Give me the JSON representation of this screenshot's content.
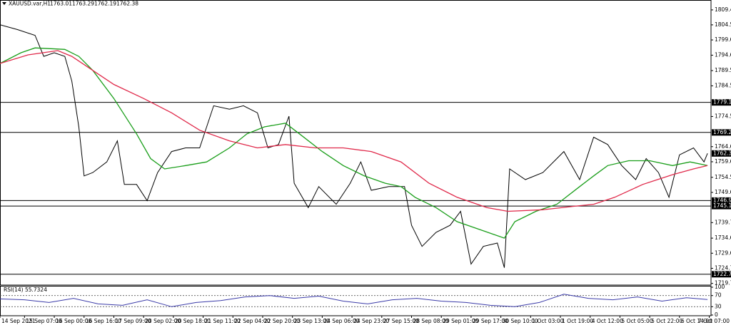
{
  "chart_data": [
    {
      "type": "line",
      "title": "XAUUSD.var,H1",
      "ohlc": [
        1763.01,
        1763.29,
        1762.19,
        1762.38
      ],
      "xlim": [
        0,
        406
      ],
      "ylim": [
        1719.2,
        1812.7
      ],
      "yticks": [
        1809.45,
        1804.55,
        {
          "value": 1799.6,
          "label": "1799.60"
        },
        {
          "value": 1794.6,
          "label": "1794.60"
        },
        1789.55,
        1784.55,
        {
          "value": 1774.5,
          "label": "1774.50"
        },
        {
          "value": 1764.6,
          "label": "1764.60"
        },
        1759.65,
        1754.55,
        {
          "value": 1749.6,
          "label": "1749.60"
        },
        {
          "value": 1739.7,
          "label": "1739.70"
        },
        {
          "value": 1734.6,
          "label": "1734.60"
        },
        1729.65,
        {
          "value": 1724.7,
          "label": "1724.70"
        },
        1719.75
      ],
      "levels": [
        1779.12,
        1769.27,
        1746.93,
        1745.12,
        1722.76
      ],
      "last_price": 1762.38,
      "series": [
        {
          "color": "#000000",
          "x": [
            0,
            10,
            20,
            25,
            31,
            37,
            41,
            45,
            48,
            53,
            61,
            67,
            71,
            78,
            84,
            90,
            98,
            106,
            114,
            122,
            131,
            139,
            147,
            153,
            159,
            165,
            168,
            176,
            182,
            192,
            200,
            206,
            212,
            222,
            231,
            235,
            241,
            249,
            257,
            263,
            269,
            276,
            284,
            288,
            291,
            300,
            310,
            322,
            331,
            339,
            347,
            355,
            363,
            369,
            376,
            382,
            388,
            396,
            402,
            404
          ],
          "values": [
            1804.6,
            1803.0,
            1801.1,
            1794.2,
            1795.4,
            1794.2,
            1786.1,
            1771.1,
            1755.0,
            1756.1,
            1759.6,
            1766.5,
            1752.2,
            1752.2,
            1746.9,
            1756.1,
            1763.0,
            1764.2,
            1764.2,
            1778.0,
            1776.9,
            1778.0,
            1775.7,
            1764.2,
            1765.3,
            1774.6,
            1752.6,
            1744.6,
            1751.5,
            1745.7,
            1752.6,
            1759.6,
            1750.3,
            1751.5,
            1751.5,
            1738.8,
            1731.9,
            1736.5,
            1738.8,
            1743.4,
            1726.1,
            1731.9,
            1733.0,
            1724.9,
            1757.3,
            1753.8,
            1756.1,
            1763.0,
            1753.8,
            1767.7,
            1765.3,
            1758.4,
            1753.8,
            1760.7,
            1756.1,
            1748.0,
            1761.9,
            1764.2,
            1759.6,
            1762.4
          ]
        },
        {
          "color": "#1a9e1a",
          "x": [
            0,
            12,
            20,
            37,
            45,
            53,
            65,
            78,
            86,
            94,
            106,
            118,
            131,
            141,
            151,
            163,
            171,
            184,
            196,
            208,
            220,
            229,
            237,
            249,
            261,
            273,
            288,
            294,
            306,
            318,
            331,
            339,
            347,
            359,
            371,
            384,
            394,
            404
          ],
          "values": [
            1791.9,
            1795.4,
            1797.0,
            1796.5,
            1794.2,
            1789.6,
            1780.4,
            1768.8,
            1760.7,
            1757.3,
            1758.4,
            1759.6,
            1764.2,
            1768.8,
            1771.1,
            1772.3,
            1768.8,
            1763.0,
            1758.4,
            1755.0,
            1752.6,
            1751.5,
            1748.0,
            1744.6,
            1740.0,
            1737.6,
            1734.6,
            1740.0,
            1743.4,
            1745.7,
            1751.5,
            1755.0,
            1758.4,
            1760.0,
            1760.0,
            1758.4,
            1759.6,
            1758.4
          ]
        },
        {
          "color": "#e0294a",
          "x": [
            0,
            16,
            33,
            41,
            53,
            65,
            82,
            98,
            114,
            131,
            147,
            163,
            180,
            196,
            212,
            229,
            245,
            261,
            278,
            290,
            310,
            327,
            339,
            351,
            367,
            384,
            396,
            404
          ],
          "values": [
            1791.9,
            1794.7,
            1796.1,
            1794.2,
            1789.6,
            1785.0,
            1780.4,
            1775.7,
            1770.0,
            1766.5,
            1764.2,
            1765.3,
            1764.2,
            1764.2,
            1763.0,
            1759.6,
            1752.6,
            1748.0,
            1744.6,
            1743.4,
            1743.9,
            1745.0,
            1745.7,
            1748.0,
            1752.2,
            1755.4,
            1757.3,
            1758.4
          ]
        }
      ]
    },
    {
      "type": "line",
      "title": "RSI(14) 55.7324",
      "xlim": [
        0,
        406
      ],
      "ylim": [
        0,
        100
      ],
      "yticks": [
        100,
        70,
        30,
        0
      ],
      "levels": [
        70,
        30
      ],
      "xticks": [
        {
          "value": 0,
          "label": "14 Sep 2021"
        },
        {
          "value": 14,
          "label": "15 Sep 07:00"
        },
        {
          "value": 31,
          "label": "16 Sep 00:00"
        },
        {
          "value": 48,
          "label": "16 Sep 16:00"
        },
        {
          "value": 65,
          "label": "17 Sep 09:00"
        },
        {
          "value": 82,
          "label": "20 Sep 02:00"
        },
        {
          "value": 99,
          "label": "20 Sep 18:00"
        },
        {
          "value": 116,
          "label": "21 Sep 11:00"
        },
        {
          "value": 133,
          "label": "22 Sep 04:00"
        },
        {
          "value": 150,
          "label": "22 Sep 20:00"
        },
        {
          "value": 167,
          "label": "23 Sep 13:00"
        },
        {
          "value": 184,
          "label": "24 Sep 06:00"
        },
        {
          "value": 201,
          "label": "24 Sep 23:00"
        },
        {
          "value": 218,
          "label": "27 Sep 15:00"
        },
        {
          "value": 235,
          "label": "28 Sep 08:00"
        },
        {
          "value": 252,
          "label": "29 Sep 01:00"
        },
        {
          "value": 269,
          "label": "29 Sep 17:00"
        },
        {
          "value": 286,
          "label": "30 Sep 10:00"
        },
        {
          "value": 303,
          "label": "1 Oct 03:00"
        },
        {
          "value": 320,
          "label": "1 Oct 19:00"
        },
        {
          "value": 337,
          "label": "4 Oct 12:00"
        },
        {
          "value": 354,
          "label": "5 Oct 05:00"
        },
        {
          "value": 371,
          "label": "5 Oct 22:00"
        },
        {
          "value": 388,
          "label": "6 Oct 14:00"
        },
        {
          "value": 405,
          "label": "7 Oct 07:00"
        }
      ],
      "series": [
        {
          "color": "#3a3aa8",
          "x": [
            0,
            14,
            28,
            42,
            56,
            70,
            84,
            98,
            112,
            126,
            140,
            154,
            168,
            182,
            196,
            210,
            224,
            238,
            252,
            266,
            280,
            294,
            308,
            322,
            336,
            350,
            364,
            378,
            392,
            404
          ],
          "values": [
            58,
            55,
            45,
            60,
            40,
            35,
            55,
            30,
            45,
            52,
            65,
            70,
            60,
            68,
            50,
            40,
            55,
            60,
            50,
            45,
            35,
            30,
            45,
            75,
            60,
            55,
            65,
            50,
            62,
            56
          ]
        }
      ]
    }
  ]
}
